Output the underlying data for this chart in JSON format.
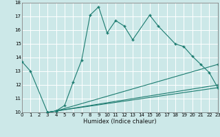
{
  "xlabel": "Humidex (Indice chaleur)",
  "bg_color": "#cce8e8",
  "grid_color": "#ffffff",
  "line_color": "#1a7a6e",
  "xlim": [
    0,
    23
  ],
  "ylim": [
    10,
    18
  ],
  "xticks": [
    0,
    1,
    2,
    3,
    4,
    5,
    6,
    7,
    8,
    9,
    10,
    11,
    12,
    13,
    14,
    15,
    16,
    17,
    18,
    19,
    20,
    21,
    22,
    23
  ],
  "yticks": [
    10,
    11,
    12,
    13,
    14,
    15,
    16,
    17,
    18
  ],
  "series1_x": [
    0,
    1,
    3,
    4,
    5,
    6,
    7,
    8,
    9,
    10,
    11,
    12,
    13,
    15,
    16,
    18,
    19,
    20,
    21,
    22,
    23
  ],
  "series1_y": [
    13.7,
    13.0,
    10.0,
    10.1,
    10.5,
    12.2,
    13.8,
    17.1,
    17.7,
    15.8,
    16.7,
    16.3,
    15.3,
    17.1,
    16.3,
    15.0,
    14.8,
    14.1,
    13.5,
    12.9,
    11.8
  ],
  "series2_x": [
    3,
    4,
    23
  ],
  "series2_y": [
    10.0,
    10.1,
    13.5
  ],
  "series3_x": [
    3,
    4,
    23
  ],
  "series3_y": [
    10.0,
    10.1,
    12.0
  ],
  "series4_x": [
    3,
    4,
    23
  ],
  "series4_y": [
    10.0,
    10.1,
    11.8
  ]
}
